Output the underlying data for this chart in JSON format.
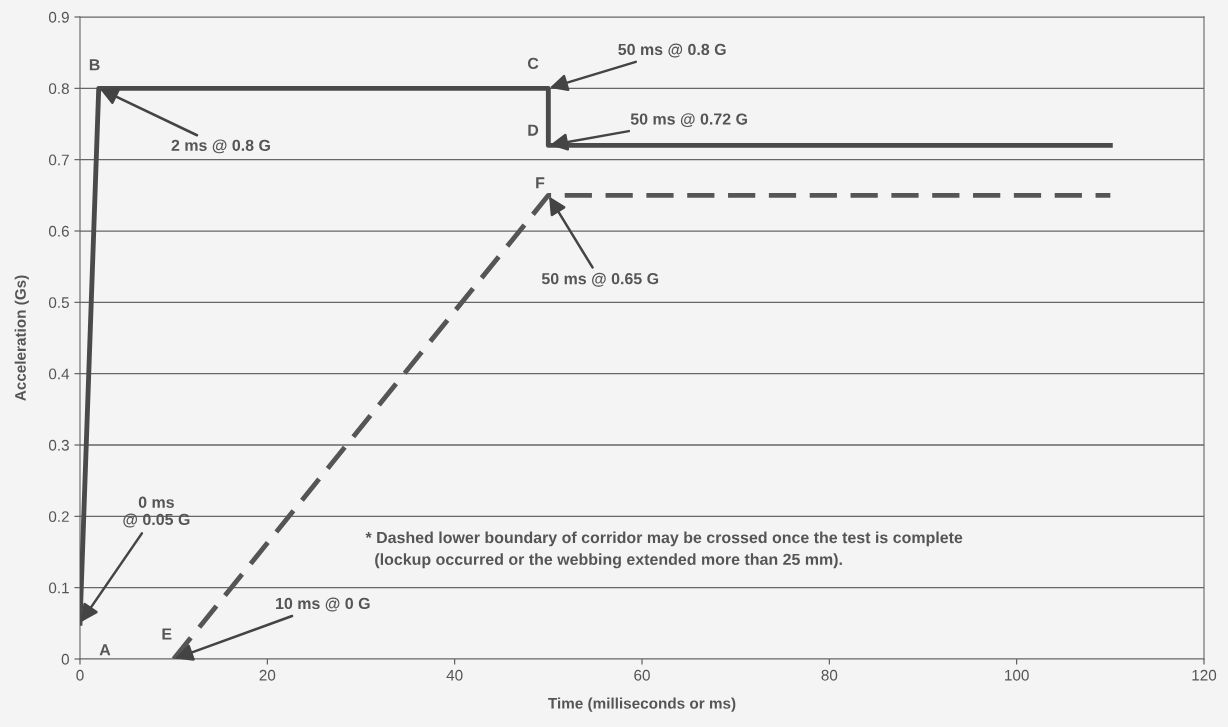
{
  "chart_data": {
    "type": "line",
    "xlabel": "Time (milliseconds or ms)",
    "ylabel": "Acceleration (Gs)",
    "series": [
      {
        "color": "#4a4a4a",
        "line_style": "solid",
        "x": [
          0,
          2,
          50,
          50,
          110
        ],
        "values": [
          0.05,
          0.8,
          0.8,
          0.72,
          0.72
        ]
      },
      {
        "color": "#555555",
        "line_style": "dashed",
        "x": [
          10,
          50,
          110
        ],
        "values": [
          0,
          0.65,
          0.65
        ]
      }
    ],
    "xlim": [
      0,
      120
    ],
    "xticks": [
      0,
      20,
      40,
      60,
      80,
      100,
      120
    ],
    "ylim": [
      0,
      0.9
    ],
    "yticks": [
      0,
      0.1,
      0.2,
      0.3,
      0.4,
      0.5,
      0.6,
      0.7,
      0.8,
      0.9
    ],
    "grid": "y",
    "annotations": [
      {
        "text": "A",
        "x": 0,
        "y": 0.05
      },
      {
        "text": "0 ms\n@ 0.05 G",
        "x": 0,
        "y": 0.05
      },
      {
        "text": "B",
        "x": 2,
        "y": 0.8
      },
      {
        "text": "2 ms @ 0.8 G",
        "x": 2,
        "y": 0.8
      },
      {
        "text": "C",
        "x": 50,
        "y": 0.8
      },
      {
        "text": "50 ms @ 0.8 G",
        "x": 50,
        "y": 0.8
      },
      {
        "text": "D",
        "x": 50,
        "y": 0.72
      },
      {
        "text": "50 ms @ 0.72 G",
        "x": 50,
        "y": 0.72
      },
      {
        "text": "E",
        "x": 10,
        "y": 0
      },
      {
        "text": "10 ms @ 0 G",
        "x": 10,
        "y": 0
      },
      {
        "text": "F",
        "x": 50,
        "y": 0.65
      },
      {
        "text": "50 ms @ 0.65 G",
        "x": 50,
        "y": 0.65
      },
      "* Dashed lower boundary of corridor may be crossed once the test is complete\n  (lockup occurred or the webbing extended more than 25 mm)."
    ]
  }
}
